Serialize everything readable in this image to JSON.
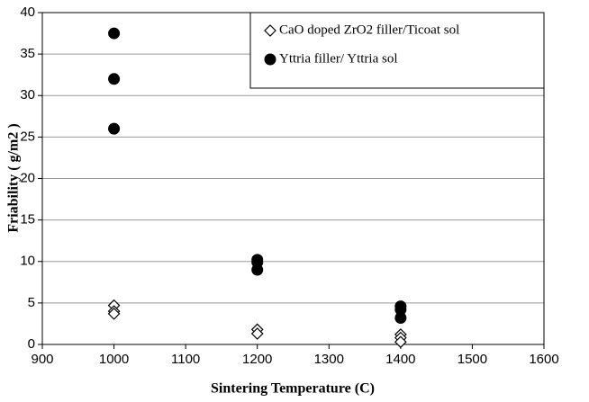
{
  "chart_data": {
    "type": "scatter",
    "xlabel": "Sintering Temperature (C)",
    "ylabel": "Friability ( g/m2 )",
    "xlim": [
      900,
      1600
    ],
    "xticks": [
      900,
      1000,
      1100,
      1200,
      1300,
      1400,
      1500,
      1600
    ],
    "ylim": [
      0,
      40
    ],
    "yticks": [
      0,
      5,
      10,
      15,
      20,
      25,
      30,
      35,
      40
    ],
    "grid": true,
    "legend": "upper right",
    "series": [
      {
        "name": "CaO doped ZrO2 filler/Ticoat sol",
        "color": "#000000",
        "marker": "diamond",
        "x": [
          1000,
          1000,
          1000,
          1200,
          1200,
          1400,
          1400,
          1400
        ],
        "values": [
          4.7,
          4.0,
          3.7,
          1.8,
          1.3,
          1.2,
          0.8,
          0.3
        ]
      },
      {
        "name": "Yttria filler/ Yttria sol",
        "color": "#000000",
        "marker": "circle",
        "x": [
          1000,
          1000,
          1000,
          1200,
          1200,
          1200,
          1400,
          1400,
          1400
        ],
        "values": [
          37.5,
          32,
          26,
          10.2,
          9.9,
          9.0,
          4.6,
          4.2,
          3.2
        ]
      }
    ]
  }
}
